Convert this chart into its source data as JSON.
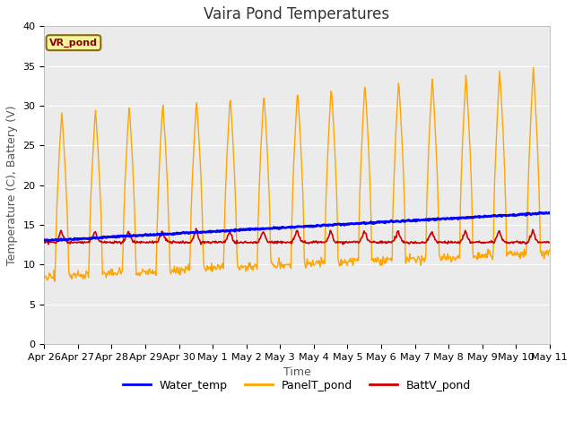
{
  "title": "Vaira Pond Temperatures",
  "xlabel": "Time",
  "ylabel": "Temperature (C), Battery (V)",
  "annotation": "VR_pond",
  "ylim": [
    0,
    40
  ],
  "yticks": [
    0,
    5,
    10,
    15,
    20,
    25,
    30,
    35,
    40
  ],
  "xtick_labels": [
    "Apr 26",
    "Apr 27",
    "Apr 28",
    "Apr 29",
    "Apr 30",
    "May 1",
    "May 2",
    "May 3",
    "May 4",
    "May 5",
    "May 6",
    "May 7",
    "May 8",
    "May 9",
    "May 10",
    "May 11"
  ],
  "water_color": "#0000ff",
  "panel_color": "#ffa500",
  "batt_color": "#cc0000",
  "bg_color": "#ebebeb",
  "grid_color": "#ffffff",
  "legend_labels": [
    "Water_temp",
    "PanelT_pond",
    "BattV_pond"
  ],
  "title_fontsize": 12,
  "axis_label_fontsize": 9,
  "tick_fontsize": 8,
  "annot_fontsize": 8
}
